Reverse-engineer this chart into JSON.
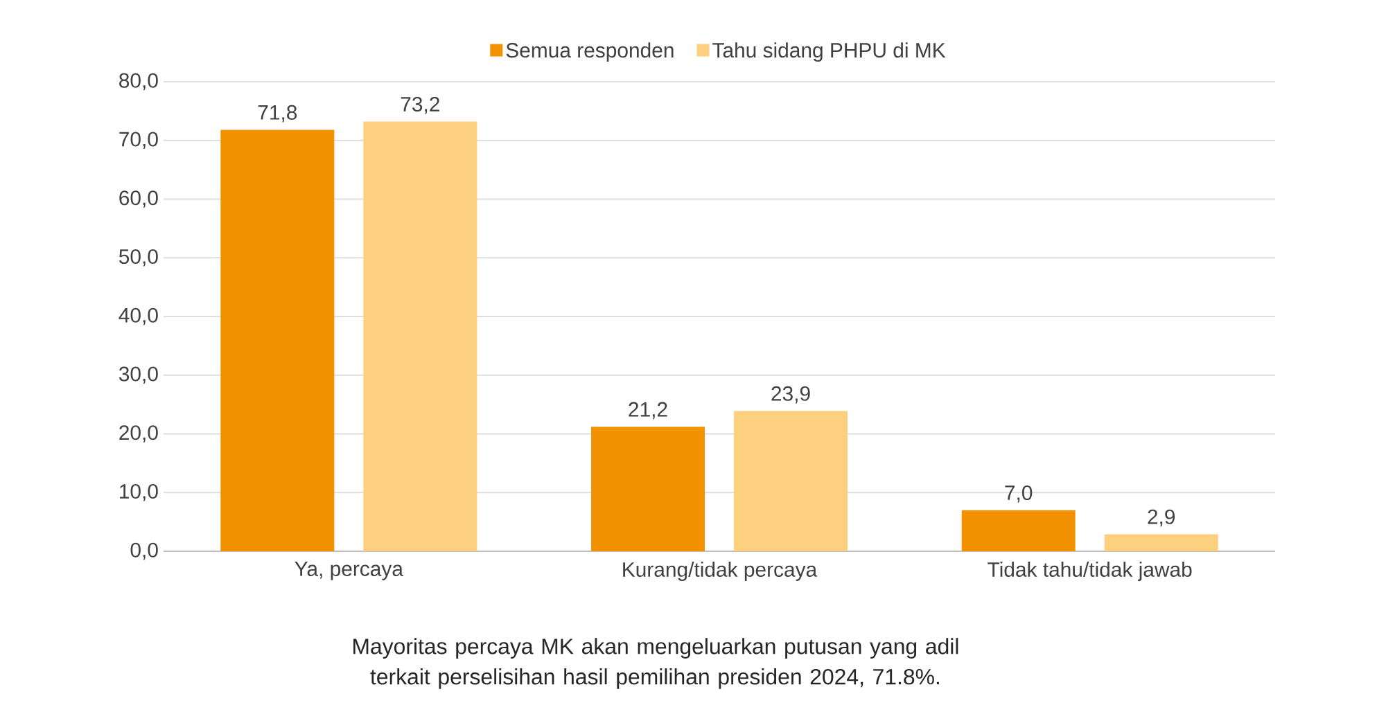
{
  "chart_data": {
    "type": "bar",
    "categories": [
      "Ya, percaya",
      "Kurang/tidak percaya",
      "Tidak tahu/tidak jawab"
    ],
    "series": [
      {
        "name": "Semua responden",
        "color": "#f39200",
        "values": [
          71.8,
          21.2,
          7.0
        ],
        "value_labels": [
          "71,8",
          "21,2",
          "7,0"
        ]
      },
      {
        "name": "Tahu sidang PHPU di MK",
        "color": "#fcd07e",
        "values": [
          73.2,
          23.9,
          2.9
        ],
        "value_labels": [
          "73,2",
          "23,9",
          "2,9"
        ]
      }
    ],
    "ylim": [
      0,
      80
    ],
    "yticks": [
      {
        "value": 0,
        "label": "0,0"
      },
      {
        "value": 10,
        "label": "10,0"
      },
      {
        "value": 20,
        "label": "20,0"
      },
      {
        "value": 30,
        "label": "30,0"
      },
      {
        "value": 40,
        "label": "40,0"
      },
      {
        "value": 50,
        "label": "50,0"
      },
      {
        "value": 60,
        "label": "60,0"
      },
      {
        "value": 70,
        "label": "70,0"
      },
      {
        "value": 80,
        "label": "80,0"
      }
    ],
    "grid": "y",
    "legend": "top",
    "annotations": [
      "Mayoritas percaya MK akan mengeluarkan putusan yang adil terkait perselisihan hasil pemilihan presiden 2024, 71.8%."
    ]
  }
}
